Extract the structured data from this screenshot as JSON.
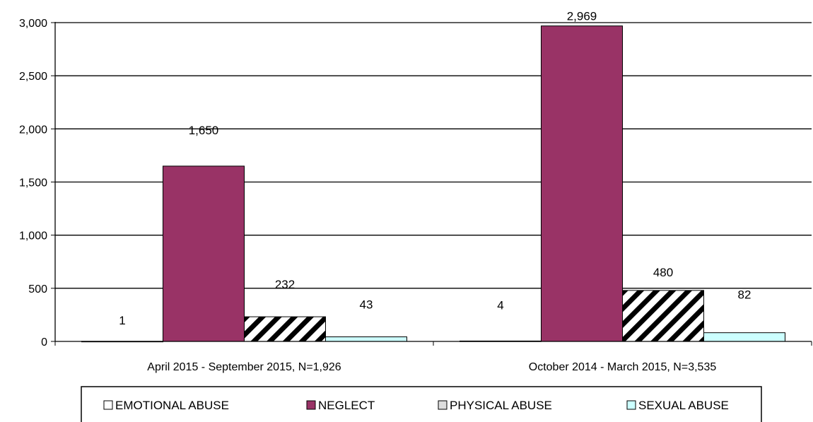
{
  "chart_data": {
    "type": "bar",
    "title": "",
    "xlabel": "",
    "ylabel": "",
    "categories": [
      "April 2015 - September 2015, N=1,926",
      "October 2014 - March 2015, N=3,535"
    ],
    "series": [
      {
        "name": "EMOTIONAL ABUSE",
        "values": [
          1,
          4
        ],
        "labels": [
          "1",
          "4"
        ],
        "fill": "#ffffff",
        "pattern": "none"
      },
      {
        "name": "NEGLECT",
        "values": [
          1650,
          2969
        ],
        "labels": [
          "1,650",
          "2,969"
        ],
        "fill": "#993366",
        "pattern": "none"
      },
      {
        "name": "PHYSICAL ABUSE",
        "values": [
          232,
          480
        ],
        "labels": [
          "232",
          "480"
        ],
        "fill": "#ffffff",
        "pattern": "diagonal-stripes"
      },
      {
        "name": "SEXUAL ABUSE",
        "values": [
          43,
          82
        ],
        "labels": [
          "43",
          "82"
        ],
        "fill": "#ccffff",
        "pattern": "none"
      }
    ],
    "ylim": [
      0,
      3000
    ],
    "yticks": [
      0,
      500,
      1000,
      1500,
      2000,
      2500,
      3000
    ],
    "ytick_labels": [
      "0",
      "500",
      "1,000",
      "1,500",
      "2,000",
      "2,500",
      "3,000"
    ],
    "grid": true,
    "legend_position": "bottom"
  }
}
